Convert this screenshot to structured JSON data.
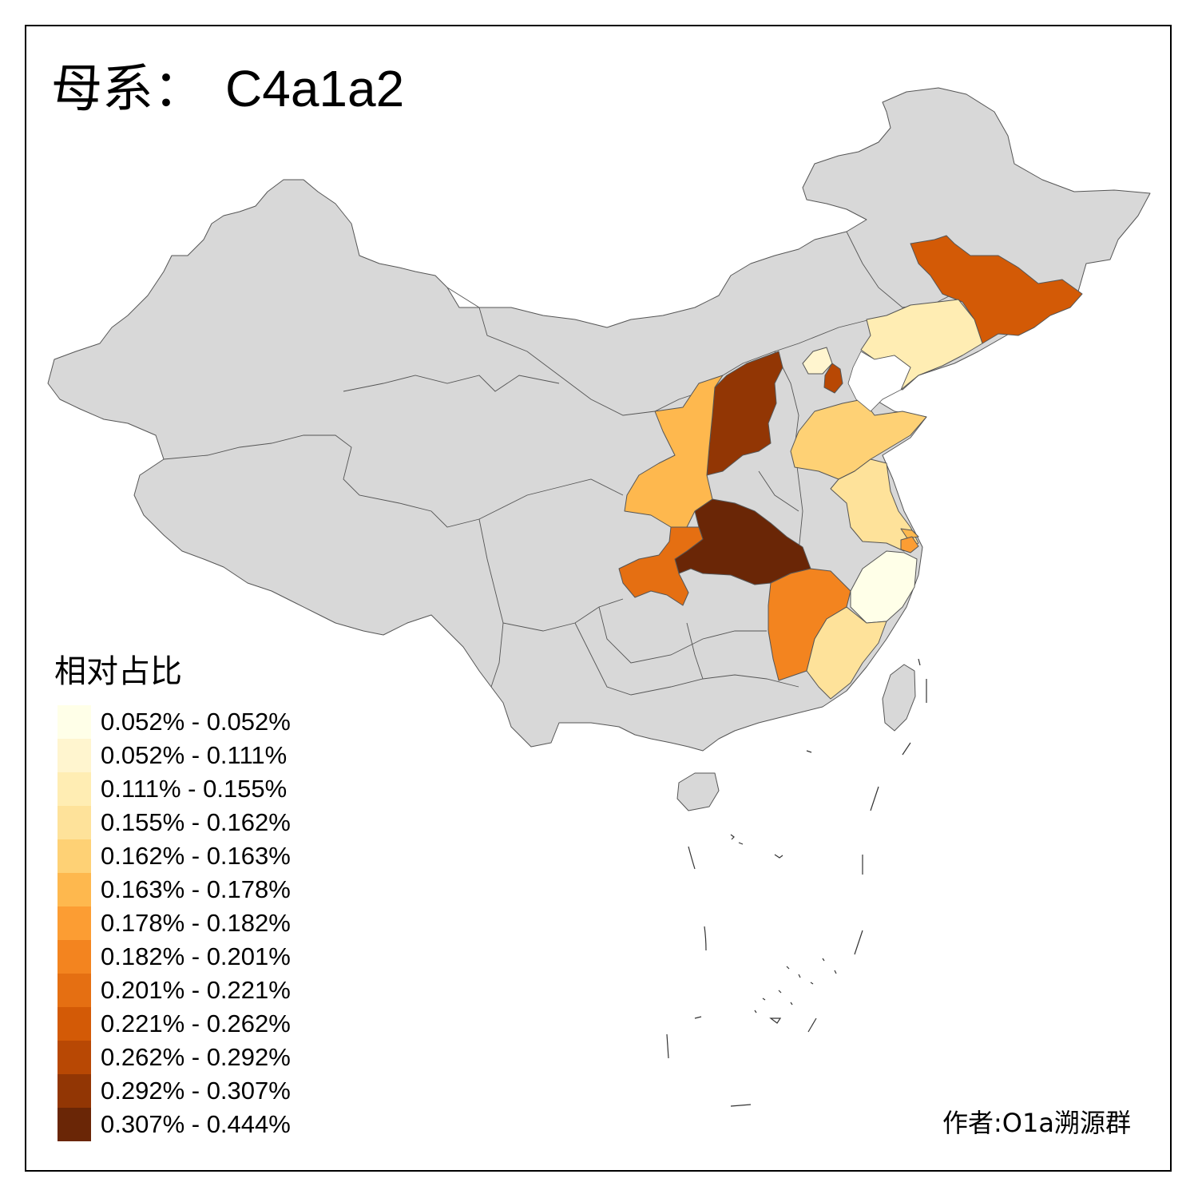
{
  "title": {
    "prefix": "母系：",
    "lineage": "C4a1a2"
  },
  "legend": {
    "title": "相对占比",
    "items": [
      {
        "label": "0.052% - 0.052%",
        "color": "#FFFFE8"
      },
      {
        "label": "0.052% - 0.111%",
        "color": "#FFF5CF"
      },
      {
        "label": "0.111% - 0.155%",
        "color": "#FFEDB3"
      },
      {
        "label": "0.155% - 0.162%",
        "color": "#FEE29A"
      },
      {
        "label": "0.162% - 0.163%",
        "color": "#FED175"
      },
      {
        "label": "0.163% - 0.178%",
        "color": "#FEB84E"
      },
      {
        "label": "0.178% - 0.182%",
        "color": "#FC9D33"
      },
      {
        "label": "0.182% - 0.201%",
        "color": "#F3841F"
      },
      {
        "label": "0.201% - 0.221%",
        "color": "#E56F12"
      },
      {
        "label": "0.221% - 0.262%",
        "color": "#D35A06"
      },
      {
        "label": "0.262% - 0.292%",
        "color": "#B84804"
      },
      {
        "label": "0.292% - 0.307%",
        "color": "#923604"
      },
      {
        "label": "0.307% - 0.444%",
        "color": "#6A2606"
      }
    ]
  },
  "map": {
    "base_color": "#D8D8D8",
    "sea_color": "#FFFFFF",
    "regions": [
      {
        "region": "Jilin",
        "bin": 9
      },
      {
        "region": "Liaoning",
        "bin": 2
      },
      {
        "region": "Beijing",
        "bin": 1
      },
      {
        "region": "Tianjin",
        "bin": 10
      },
      {
        "region": "Shanxi",
        "bin": 11
      },
      {
        "region": "Shaanxi",
        "bin": 5
      },
      {
        "region": "Shandong",
        "bin": 4
      },
      {
        "region": "Jiangsu",
        "bin": 3
      },
      {
        "region": "Shanghai",
        "bin": 6
      },
      {
        "region": "Shanghai-north",
        "bin": 5
      },
      {
        "region": "Hubei",
        "bin": 12
      },
      {
        "region": "Chongqing",
        "bin": 8
      },
      {
        "region": "Jiangxi",
        "bin": 7
      },
      {
        "region": "Zhejiang",
        "bin": 0
      },
      {
        "region": "Fujian",
        "bin": 3
      }
    ]
  },
  "credit": "作者:O1a溯源群"
}
